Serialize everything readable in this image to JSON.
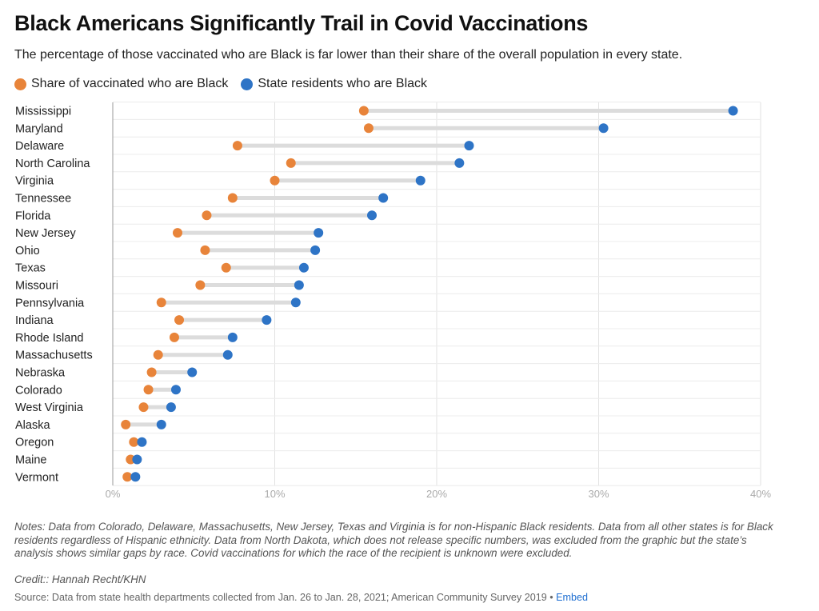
{
  "title": "Black Americans Significantly Trail in Covid Vaccinations",
  "subtitle": "The percentage of those vaccinated who are Black is far lower than their share of the overall population in every state.",
  "legend": [
    {
      "label": "Share of vaccinated who are Black",
      "color": "#e8843a"
    },
    {
      "label": "State residents who are Black",
      "color": "#2e74c6"
    }
  ],
  "notes": "Notes: Data from Colorado, Delaware, Massachusetts, New Jersey, Texas and Virginia is for non-Hispanic Black residents. Data from all other states is for Black residents regardless of Hispanic ethnicity. Data from North Dakota, which does not release specific numbers, was excluded from the graphic but the state’s analysis shows similar gaps by race. Covid vaccinations for which the race of the recipient is unknown were excluded.",
  "credit": "Credit:: Hannah Recht/KHN",
  "source": "Source: Data from state health departments collected from Jan. 26 to Jan. 28, 2021; American Community Survey 2019",
  "source_sep": "•",
  "embed_label": "Embed",
  "chart_data": {
    "type": "dumbbell",
    "categories": [
      "Mississippi",
      "Maryland",
      "Delaware",
      "North Carolina",
      "Virginia",
      "Tennessee",
      "Florida",
      "New Jersey",
      "Ohio",
      "Texas",
      "Missouri",
      "Pennsylvania",
      "Indiana",
      "Rhode Island",
      "Massachusetts",
      "Nebraska",
      "Colorado",
      "West Virginia",
      "Alaska",
      "Oregon",
      "Maine",
      "Vermont"
    ],
    "series": [
      {
        "name": "Share of vaccinated who are Black",
        "color": "#e8843a",
        "values": [
          15.5,
          15.8,
          7.7,
          11.0,
          10.0,
          7.4,
          5.8,
          4.0,
          5.7,
          7.0,
          5.4,
          3.0,
          4.1,
          3.8,
          2.8,
          2.4,
          2.2,
          1.9,
          0.8,
          1.3,
          1.1,
          0.9
        ]
      },
      {
        "name": "State residents who are Black",
        "color": "#2e74c6",
        "values": [
          38.3,
          30.3,
          22.0,
          21.4,
          19.0,
          16.7,
          16.0,
          12.7,
          12.5,
          11.8,
          11.5,
          11.3,
          9.5,
          7.4,
          7.1,
          4.9,
          3.9,
          3.6,
          3.0,
          1.8,
          1.5,
          1.4
        ]
      }
    ],
    "xlim": [
      0,
      40
    ],
    "xticks": [
      0,
      10,
      20,
      30,
      40
    ],
    "xtick_labels": [
      "0%",
      "10%",
      "20%",
      "30%",
      "40%"
    ],
    "grid": true,
    "legend_position": "top-left"
  }
}
